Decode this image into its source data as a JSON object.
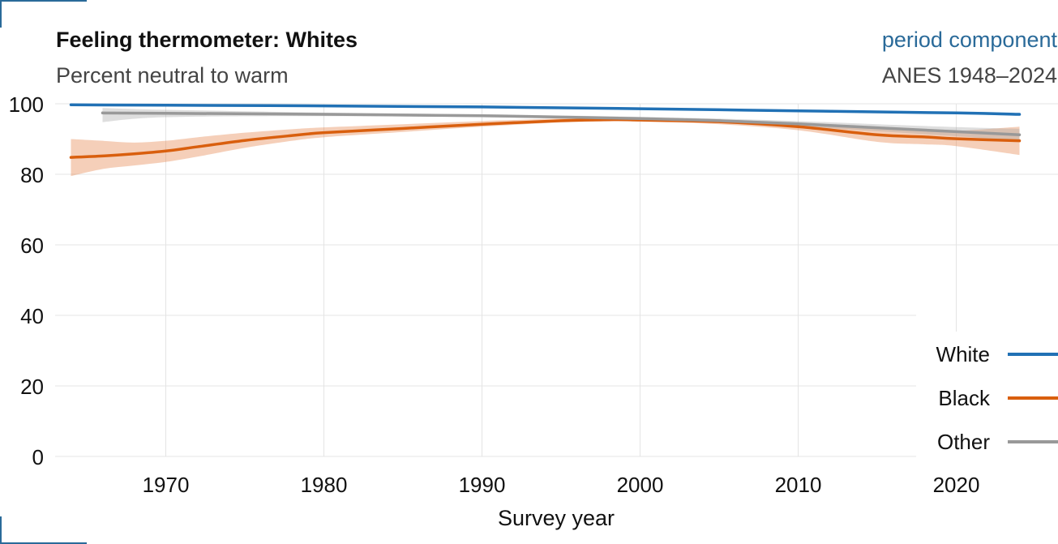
{
  "header": {
    "title": "Feeling thermometer: Whites",
    "subtitle": "Percent neutral to warm",
    "component": "period component",
    "source": "ANES 1948–2024"
  },
  "colors": {
    "white": "#2171b5",
    "black": "#d95f0e",
    "other": "#999999",
    "accent": "#2a6a99"
  },
  "chart_data": {
    "type": "line",
    "title": "Feeling thermometer: Whites",
    "subtitle": "Percent neutral to warm",
    "xlabel": "Survey year",
    "ylabel": "",
    "xlim": [
      1963,
      2025
    ],
    "ylim": [
      0,
      100
    ],
    "xticks": [
      1970,
      1980,
      1990,
      2000,
      2010,
      2020
    ],
    "yticks": [
      0,
      20,
      40,
      60,
      80,
      100
    ],
    "grid": true,
    "legend": "bottom-right",
    "series": [
      {
        "name": "White",
        "color": "#2171b5",
        "x": [
          1964,
          1970,
          1980,
          1990,
          2000,
          2010,
          2020,
          2024
        ],
        "y": [
          99.7,
          99.6,
          99.4,
          99.1,
          98.6,
          98.0,
          97.4,
          97.0
        ],
        "lower": [
          99.5,
          99.4,
          99.2,
          98.9,
          98.4,
          97.8,
          97.0,
          96.5
        ],
        "upper": [
          99.9,
          99.8,
          99.6,
          99.3,
          98.8,
          98.2,
          97.8,
          97.5
        ]
      },
      {
        "name": "Black",
        "color": "#d95f0e",
        "x": [
          1964,
          1966,
          1968,
          1970,
          1972,
          1975,
          1978,
          1980,
          1985,
          1990,
          1995,
          1998,
          2000,
          2005,
          2010,
          2015,
          2018,
          2020,
          2024
        ],
        "y": [
          84.8,
          85.2,
          85.8,
          86.6,
          87.8,
          89.6,
          91.0,
          91.8,
          93.0,
          94.2,
          95.2,
          95.5,
          95.4,
          94.9,
          93.5,
          91.2,
          90.6,
          90.1,
          89.5
        ],
        "lower": [
          79.5,
          81.5,
          82.5,
          83.5,
          85.0,
          87.5,
          89.5,
          90.5,
          92.0,
          93.5,
          94.7,
          95.0,
          94.9,
          94.2,
          92.5,
          89.2,
          88.5,
          88.0,
          85.5
        ],
        "upper": [
          90.0,
          89.5,
          89.0,
          89.5,
          90.5,
          91.8,
          92.8,
          93.3,
          94.2,
          95.1,
          95.8,
          96.1,
          96.0,
          95.6,
          94.5,
          93.2,
          92.7,
          92.3,
          93.5
        ]
      },
      {
        "name": "Other",
        "color": "#999999",
        "x": [
          1966,
          1970,
          1980,
          1990,
          2000,
          2005,
          2010,
          2015,
          2020,
          2024
        ],
        "y": [
          97.4,
          97.3,
          97.0,
          96.6,
          95.8,
          95.2,
          94.3,
          93.2,
          92.1,
          91.2
        ],
        "lower": [
          94.8,
          96.2,
          96.5,
          96.2,
          95.3,
          94.6,
          93.5,
          92.2,
          90.8,
          89.5
        ],
        "upper": [
          98.8,
          98.3,
          97.5,
          97.0,
          96.3,
          95.8,
          95.1,
          94.2,
          93.4,
          92.9
        ]
      }
    ]
  }
}
